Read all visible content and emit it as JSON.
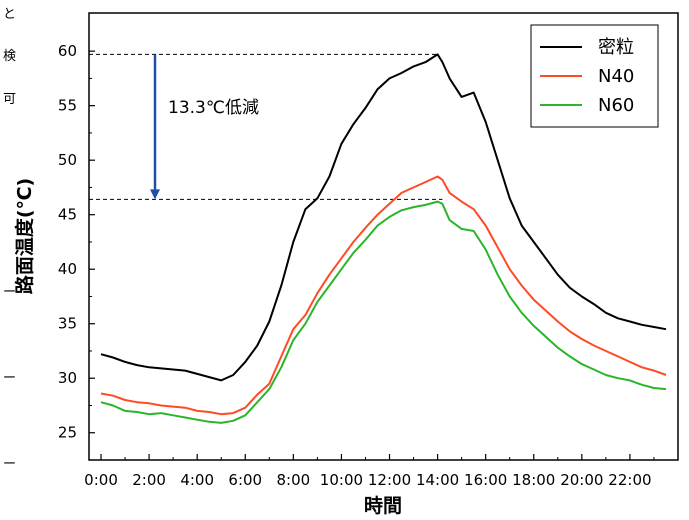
{
  "chart_data": {
    "type": "line",
    "xlabel": "時間",
    "ylabel": "路面温度(℃)",
    "xlim": [
      -0.5,
      24
    ],
    "ylim": [
      22.5,
      63.5
    ],
    "x_ticks": [
      0,
      2,
      4,
      6,
      8,
      10,
      12,
      14,
      16,
      18,
      20,
      22
    ],
    "x_tick_labels": [
      "0:00",
      "2:00",
      "4:00",
      "6:00",
      "8:00",
      "10:00",
      "12:00",
      "14:00",
      "16:00",
      "18:00",
      "20:00",
      "22:00"
    ],
    "y_ticks": [
      25,
      30,
      35,
      40,
      45,
      50,
      55,
      60
    ],
    "y_tick_labels": [
      "25",
      "30",
      "35",
      "40",
      "45",
      "50",
      "55",
      "60"
    ],
    "grid": false,
    "legend_position": "top-right",
    "series": [
      {
        "name": "密粒",
        "color": "#000000",
        "x": [
          0,
          0.5,
          1,
          1.5,
          2,
          2.5,
          3,
          3.5,
          4,
          4.5,
          5,
          5.5,
          6,
          6.5,
          7,
          7.5,
          8,
          8.5,
          9,
          9.5,
          10,
          10.5,
          11,
          11.5,
          12,
          12.5,
          13,
          13.5,
          14,
          14.2,
          14.5,
          15,
          15.5,
          16,
          16.5,
          17,
          17.5,
          18,
          18.5,
          19,
          19.5,
          20,
          20.5,
          21,
          21.5,
          22,
          22.5,
          23,
          23.5
        ],
        "values": [
          32.2,
          31.9,
          31.5,
          31.2,
          31.0,
          30.9,
          30.8,
          30.7,
          30.4,
          30.1,
          29.8,
          30.3,
          31.5,
          33.0,
          35.2,
          38.5,
          42.5,
          45.5,
          46.5,
          48.5,
          51.5,
          53.3,
          54.8,
          56.5,
          57.5,
          58.0,
          58.6,
          59.0,
          59.7,
          59.0,
          57.5,
          55.8,
          56.2,
          53.5,
          50.0,
          46.5,
          44.0,
          42.5,
          41.0,
          39.5,
          38.3,
          37.5,
          36.8,
          36.0,
          35.5,
          35.2,
          34.9,
          34.7,
          34.5
        ]
      },
      {
        "name": "N40",
        "color": "#ff4a26",
        "x": [
          0,
          0.5,
          1,
          1.5,
          2,
          2.5,
          3,
          3.5,
          4,
          4.5,
          5,
          5.5,
          6,
          6.5,
          7,
          7.5,
          8,
          8.5,
          9,
          9.5,
          10,
          10.5,
          11,
          11.5,
          12,
          12.5,
          13,
          13.5,
          14,
          14.2,
          14.5,
          15,
          15.5,
          16,
          16.5,
          17,
          17.5,
          18,
          18.5,
          19,
          19.5,
          20,
          20.5,
          21,
          21.5,
          22,
          22.5,
          23,
          23.5
        ],
        "values": [
          28.6,
          28.4,
          28.0,
          27.8,
          27.7,
          27.5,
          27.4,
          27.3,
          27.0,
          26.9,
          26.7,
          26.8,
          27.3,
          28.5,
          29.5,
          32.0,
          34.5,
          35.8,
          37.8,
          39.5,
          41.0,
          42.5,
          43.8,
          45.0,
          46.0,
          47.0,
          47.5,
          48.0,
          48.5,
          48.2,
          47.0,
          46.2,
          45.5,
          44.0,
          42.0,
          40.0,
          38.5,
          37.2,
          36.2,
          35.2,
          34.3,
          33.6,
          33.0,
          32.5,
          32.0,
          31.5,
          31.0,
          30.7,
          30.3
        ]
      },
      {
        "name": "N60",
        "color": "#2ab52a",
        "x": [
          0,
          0.5,
          1,
          1.5,
          2,
          2.5,
          3,
          3.5,
          4,
          4.5,
          5,
          5.5,
          6,
          6.5,
          7,
          7.5,
          8,
          8.5,
          9,
          9.5,
          10,
          10.5,
          11,
          11.5,
          12,
          12.5,
          13,
          13.5,
          14,
          14.2,
          14.5,
          15,
          15.5,
          16,
          16.5,
          17,
          17.5,
          18,
          18.5,
          19,
          19.5,
          20,
          20.5,
          21,
          21.5,
          22,
          22.5,
          23,
          23.5
        ],
        "values": [
          27.8,
          27.5,
          27.0,
          26.9,
          26.7,
          26.8,
          26.6,
          26.4,
          26.2,
          26.0,
          25.9,
          26.1,
          26.6,
          27.8,
          29.0,
          31.0,
          33.5,
          35.0,
          37.0,
          38.5,
          40.0,
          41.5,
          42.7,
          44.0,
          44.8,
          45.4,
          45.7,
          45.9,
          46.2,
          46.0,
          44.5,
          43.7,
          43.5,
          41.8,
          39.5,
          37.5,
          36.0,
          34.8,
          33.8,
          32.8,
          32.0,
          31.3,
          30.8,
          30.3,
          30.0,
          29.8,
          29.4,
          29.1,
          29.0
        ]
      }
    ],
    "annotations": [
      {
        "text": "13.3℃低減",
        "from_y": 59.7,
        "to_y": 46.4
      }
    ],
    "reference_lines_y": [
      59.7,
      46.4
    ]
  },
  "page_edge_fragments": [
    "と",
    "検",
    "可",
    "ー",
    "ー",
    "ー"
  ]
}
